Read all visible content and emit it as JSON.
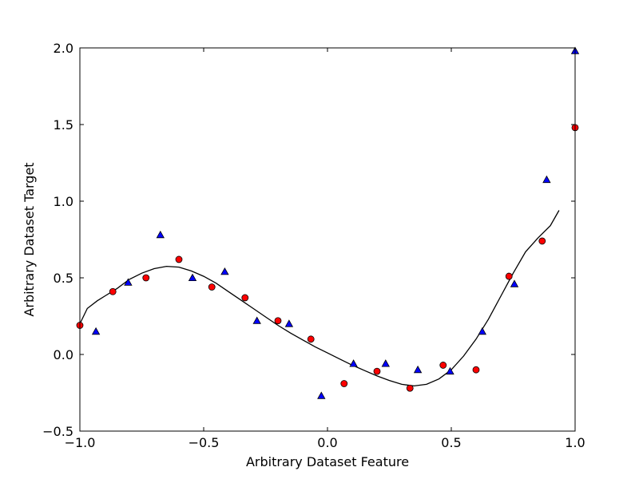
{
  "chart_data": {
    "type": "scatter",
    "title": "",
    "xlabel": "Arbitrary Dataset Feature",
    "ylabel": "Arbitrary Dataset Target",
    "xlim": [
      -1.0,
      1.0
    ],
    "ylim": [
      -0.5,
      2.0
    ],
    "x_ticks": [
      -1.0,
      -0.5,
      0.0,
      0.5,
      1.0
    ],
    "x_tick_labels": [
      "−1.0",
      "−0.5",
      "0.0",
      "0.5",
      "1.0"
    ],
    "y_ticks": [
      -0.5,
      0.0,
      0.5,
      1.0,
      1.5,
      2.0
    ],
    "y_tick_labels": [
      "−0.5",
      "0.0",
      "0.5",
      "1.0",
      "1.5",
      "2.0"
    ],
    "grid": false,
    "series": [
      {
        "type": "scatter",
        "marker": "circle",
        "color": "#ff0000",
        "x": [
          -1.0,
          -0.867,
          -0.733,
          -0.6,
          -0.467,
          -0.333,
          -0.2,
          -0.067,
          0.067,
          0.2,
          0.333,
          0.467,
          0.6,
          0.733,
          0.867,
          1.0
        ],
        "y": [
          0.19,
          0.41,
          0.5,
          0.62,
          0.44,
          0.37,
          0.22,
          0.1,
          -0.19,
          -0.11,
          -0.22,
          -0.07,
          -0.1,
          0.51,
          0.74,
          1.48
        ]
      },
      {
        "type": "scatter",
        "marker": "triangle",
        "color": "#0000ff",
        "x": [
          -0.935,
          -0.805,
          -0.675,
          -0.545,
          -0.415,
          -0.285,
          -0.155,
          -0.025,
          0.105,
          0.235,
          0.365,
          0.495,
          0.625,
          0.755,
          0.885,
          1.0
        ],
        "y": [
          0.15,
          0.47,
          0.78,
          0.5,
          0.54,
          0.22,
          0.2,
          -0.27,
          -0.06,
          -0.06,
          -0.1,
          -0.11,
          0.15,
          0.46,
          1.14,
          1.98
        ]
      },
      {
        "type": "line",
        "color": "#000000",
        "x": [
          -1.0,
          -0.97,
          -0.93,
          -0.9,
          -0.85,
          -0.8,
          -0.75,
          -0.7,
          -0.65,
          -0.6,
          -0.55,
          -0.5,
          -0.45,
          -0.4,
          -0.35,
          -0.3,
          -0.25,
          -0.2,
          -0.15,
          -0.1,
          -0.05,
          0.0,
          0.05,
          0.1,
          0.15,
          0.2,
          0.25,
          0.3,
          0.35,
          0.4,
          0.45,
          0.5,
          0.55,
          0.6,
          0.65,
          0.7,
          0.75,
          0.8,
          0.85,
          0.9,
          0.935
        ],
        "y": [
          0.2,
          0.3,
          0.35,
          0.38,
          0.43,
          0.49,
          0.53,
          0.56,
          0.575,
          0.57,
          0.545,
          0.51,
          0.465,
          0.41,
          0.355,
          0.3,
          0.245,
          0.19,
          0.14,
          0.095,
          0.05,
          0.01,
          -0.03,
          -0.07,
          -0.105,
          -0.14,
          -0.17,
          -0.195,
          -0.205,
          -0.195,
          -0.16,
          -0.1,
          -0.01,
          0.1,
          0.23,
          0.38,
          0.53,
          0.67,
          0.76,
          0.84,
          0.94
        ]
      }
    ]
  }
}
